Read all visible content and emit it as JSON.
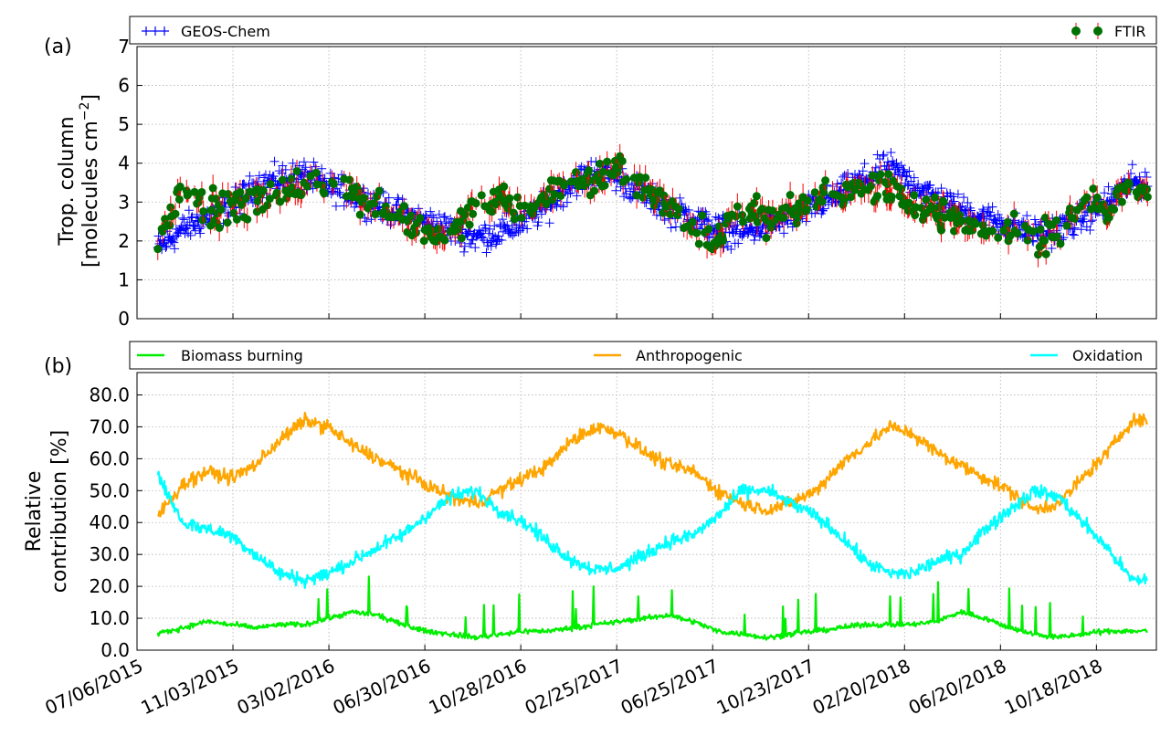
{
  "chart_data": [
    {
      "type": "scatter",
      "panel_label": "(a)",
      "ylabel_line1": "Trop. column",
      "ylabel_line2": "[molecules cm",
      "ylabel_exponent": "−2",
      "ylabel_close": "]",
      "ylim": [
        0,
        7
      ],
      "yticks": [
        0,
        1,
        2,
        3,
        4,
        5,
        6,
        7
      ],
      "x_start": "2015-07-06",
      "x_end": "2019-01-01",
      "grid": true,
      "legend_placement": "top, outside",
      "series": [
        {
          "name": "GEOS-Chem",
          "marker": "+",
          "color": "#0000ff",
          "points": [
            [
              "2015-08-01",
              1.8
            ],
            [
              "2015-09-01",
              2.3
            ],
            [
              "2015-10-01",
              2.6
            ],
            [
              "2015-11-01",
              2.9
            ],
            [
              "2015-12-01",
              3.4
            ],
            [
              "2016-01-01",
              3.6
            ],
            [
              "2016-02-01",
              3.7
            ],
            [
              "2016-03-01",
              3.4
            ],
            [
              "2016-04-01",
              3.2
            ],
            [
              "2016-05-01",
              2.9
            ],
            [
              "2016-06-01",
              2.7
            ],
            [
              "2016-07-01",
              2.5
            ],
            [
              "2016-08-01",
              2.3
            ],
            [
              "2016-09-01",
              2.1
            ],
            [
              "2016-10-01",
              2.2
            ],
            [
              "2016-11-01",
              2.5
            ],
            [
              "2016-12-01",
              2.9
            ],
            [
              "2017-01-01",
              3.5
            ],
            [
              "2017-02-01",
              3.8
            ],
            [
              "2017-03-01",
              3.6
            ],
            [
              "2017-04-01",
              3.2
            ],
            [
              "2017-05-01",
              2.8
            ],
            [
              "2017-06-01",
              2.6
            ],
            [
              "2017-07-01",
              2.3
            ],
            [
              "2017-08-01",
              2.2
            ],
            [
              "2017-09-01",
              2.4
            ],
            [
              "2017-10-01",
              2.6
            ],
            [
              "2017-11-01",
              2.9
            ],
            [
              "2017-12-01",
              3.2
            ],
            [
              "2018-01-01",
              3.6
            ],
            [
              "2018-02-01",
              3.9
            ],
            [
              "2018-03-01",
              3.5
            ],
            [
              "2018-04-01",
              3.1
            ],
            [
              "2018-05-01",
              2.8
            ],
            [
              "2018-06-01",
              2.6
            ],
            [
              "2018-07-01",
              2.4
            ],
            [
              "2018-08-01",
              2.2
            ],
            [
              "2018-09-01",
              2.3
            ],
            [
              "2018-10-01",
              2.6
            ],
            [
              "2018-11-01",
              3.0
            ],
            [
              "2018-12-01",
              3.5
            ]
          ]
        },
        {
          "name": "FTIR",
          "marker": "o",
          "color": "#007000",
          "errorbar_color": "#ff0000",
          "points": [
            [
              "2015-08-01",
              1.9
            ],
            [
              "2015-09-01",
              3.4
            ],
            [
              "2015-10-01",
              2.9
            ],
            [
              "2015-11-01",
              2.8
            ],
            [
              "2015-12-01",
              3.1
            ],
            [
              "2016-01-01",
              3.3
            ],
            [
              "2016-02-01",
              3.4
            ],
            [
              "2016-03-01",
              3.5
            ],
            [
              "2016-04-01",
              3.3
            ],
            [
              "2016-05-01",
              2.9
            ],
            [
              "2016-06-01",
              2.5
            ],
            [
              "2016-07-01",
              2.2
            ],
            [
              "2016-08-01",
              2.1
            ],
            [
              "2016-09-01",
              2.9
            ],
            [
              "2016-10-01",
              3.1
            ],
            [
              "2016-11-01",
              2.6
            ],
            [
              "2016-12-01",
              3.3
            ],
            [
              "2017-01-01",
              3.5
            ],
            [
              "2017-02-01",
              3.6
            ],
            [
              "2017-03-01",
              3.7
            ],
            [
              "2017-04-01",
              3.4
            ],
            [
              "2017-05-01",
              2.9
            ],
            [
              "2017-06-01",
              2.4
            ],
            [
              "2017-07-01",
              2.0
            ],
            [
              "2017-08-01",
              2.9
            ],
            [
              "2017-09-01",
              2.5
            ],
            [
              "2017-10-01",
              2.7
            ],
            [
              "2017-11-01",
              3.0
            ],
            [
              "2017-12-01",
              3.2
            ],
            [
              "2018-01-01",
              3.5
            ],
            [
              "2018-02-01",
              3.3
            ],
            [
              "2018-03-01",
              3.0
            ],
            [
              "2018-04-01",
              2.8
            ],
            [
              "2018-05-01",
              2.5
            ],
            [
              "2018-06-01",
              2.3
            ],
            [
              "2018-07-01",
              2.4
            ],
            [
              "2018-08-01",
              2.0
            ],
            [
              "2018-09-01",
              2.2
            ],
            [
              "2018-10-01",
              3.2
            ],
            [
              "2018-11-01",
              2.8
            ],
            [
              "2018-12-01",
              3.4
            ]
          ]
        }
      ]
    },
    {
      "type": "line",
      "panel_label": "(b)",
      "ylabel_line1": "Relative",
      "ylabel_line2": "contribution [%]",
      "ylim": [
        0,
        87
      ],
      "yticks": [
        0,
        10,
        20,
        30,
        40,
        50,
        60,
        70,
        80
      ],
      "ytick_labels": [
        "0.0",
        "10.0",
        "20.0",
        "30.0",
        "40.0",
        "50.0",
        "60.0",
        "70.0",
        "80.0"
      ],
      "x_start": "2015-07-06",
      "x_end": "2019-01-01",
      "grid": true,
      "legend_placement": "top, outside",
      "xtick_labels": [
        "07/06/2015",
        "11/03/2015",
        "03/02/2016",
        "06/30/2016",
        "10/28/2016",
        "02/25/2017",
        "06/25/2017",
        "10/23/2017",
        "02/20/2018",
        "06/20/2018",
        "10/18/2018"
      ],
      "xtick_dates": [
        "2015-07-06",
        "2015-11-03",
        "2016-03-02",
        "2016-06-30",
        "2016-10-28",
        "2017-02-25",
        "2017-06-25",
        "2017-10-23",
        "2018-02-20",
        "2018-06-20",
        "2018-10-18"
      ],
      "series": [
        {
          "name": "Biomass burning",
          "color": "#00ee00",
          "points": [
            [
              "2015-08-01",
              5
            ],
            [
              "2015-09-01",
              7
            ],
            [
              "2015-10-01",
              9
            ],
            [
              "2015-11-01",
              8
            ],
            [
              "2015-12-01",
              7
            ],
            [
              "2016-01-01",
              8
            ],
            [
              "2016-02-01",
              8
            ],
            [
              "2016-03-01",
              10
            ],
            [
              "2016-04-01",
              12
            ],
            [
              "2016-05-01",
              11
            ],
            [
              "2016-06-01",
              8
            ],
            [
              "2016-07-01",
              6
            ],
            [
              "2016-08-01",
              5
            ],
            [
              "2016-09-01",
              4
            ],
            [
              "2016-10-01",
              5
            ],
            [
              "2016-11-01",
              6
            ],
            [
              "2016-12-01",
              6
            ],
            [
              "2017-01-01",
              7
            ],
            [
              "2017-02-01",
              8
            ],
            [
              "2017-03-01",
              9
            ],
            [
              "2017-04-01",
              10
            ],
            [
              "2017-05-01",
              11
            ],
            [
              "2017-06-01",
              9
            ],
            [
              "2017-07-01",
              6
            ],
            [
              "2017-08-01",
              5
            ],
            [
              "2017-09-01",
              4
            ],
            [
              "2017-10-01",
              5
            ],
            [
              "2017-11-01",
              6
            ],
            [
              "2017-12-01",
              7
            ],
            [
              "2018-01-01",
              8
            ],
            [
              "2018-02-01",
              8
            ],
            [
              "2018-03-01",
              8
            ],
            [
              "2018-04-01",
              9
            ],
            [
              "2018-05-01",
              12
            ],
            [
              "2018-06-01",
              10
            ],
            [
              "2018-07-01",
              7
            ],
            [
              "2018-08-01",
              5
            ],
            [
              "2018-09-01",
              4
            ],
            [
              "2018-10-01",
              5
            ],
            [
              "2018-11-01",
              6
            ],
            [
              "2018-12-01",
              6
            ]
          ]
        },
        {
          "name": "Anthropogenic",
          "color": "#ffa500",
          "points": [
            [
              "2015-08-01",
              42
            ],
            [
              "2015-09-01",
              52
            ],
            [
              "2015-10-01",
              56
            ],
            [
              "2015-11-01",
              54
            ],
            [
              "2015-12-01",
              58
            ],
            [
              "2016-01-01",
              66
            ],
            [
              "2016-02-01",
              72
            ],
            [
              "2016-03-01",
              70
            ],
            [
              "2016-04-01",
              64
            ],
            [
              "2016-05-01",
              60
            ],
            [
              "2016-06-01",
              56
            ],
            [
              "2016-07-01",
              52
            ],
            [
              "2016-08-01",
              48
            ],
            [
              "2016-09-01",
              46
            ],
            [
              "2016-10-01",
              50
            ],
            [
              "2016-11-01",
              54
            ],
            [
              "2016-12-01",
              58
            ],
            [
              "2017-01-01",
              66
            ],
            [
              "2017-02-01",
              70
            ],
            [
              "2017-03-01",
              68
            ],
            [
              "2017-04-01",
              62
            ],
            [
              "2017-05-01",
              58
            ],
            [
              "2017-06-01",
              56
            ],
            [
              "2017-07-01",
              50
            ],
            [
              "2017-08-01",
              46
            ],
            [
              "2017-09-01",
              44
            ],
            [
              "2017-10-01",
              46
            ],
            [
              "2017-11-01",
              50
            ],
            [
              "2017-12-01",
              58
            ],
            [
              "2018-01-01",
              64
            ],
            [
              "2018-02-01",
              70
            ],
            [
              "2018-03-01",
              68
            ],
            [
              "2018-04-01",
              62
            ],
            [
              "2018-05-01",
              58
            ],
            [
              "2018-06-01",
              54
            ],
            [
              "2018-07-01",
              50
            ],
            [
              "2018-08-01",
              44
            ],
            [
              "2018-09-01",
              46
            ],
            [
              "2018-10-01",
              54
            ],
            [
              "2018-11-01",
              62
            ],
            [
              "2018-12-01",
              72
            ]
          ]
        },
        {
          "name": "Oxidation",
          "color": "#00ffff",
          "points": [
            [
              "2015-08-01",
              55
            ],
            [
              "2015-09-01",
              40
            ],
            [
              "2015-10-01",
              38
            ],
            [
              "2015-11-01",
              36
            ],
            [
              "2015-12-01",
              30
            ],
            [
              "2016-01-01",
              24
            ],
            [
              "2016-02-01",
              22
            ],
            [
              "2016-03-01",
              24
            ],
            [
              "2016-04-01",
              28
            ],
            [
              "2016-05-01",
              32
            ],
            [
              "2016-06-01",
              36
            ],
            [
              "2016-07-01",
              42
            ],
            [
              "2016-08-01",
              48
            ],
            [
              "2016-09-01",
              50
            ],
            [
              "2016-10-01",
              44
            ],
            [
              "2016-11-01",
              40
            ],
            [
              "2016-12-01",
              34
            ],
            [
              "2017-01-01",
              28
            ],
            [
              "2017-02-01",
              25
            ],
            [
              "2017-03-01",
              26
            ],
            [
              "2017-04-01",
              30
            ],
            [
              "2017-05-01",
              34
            ],
            [
              "2017-06-01",
              36
            ],
            [
              "2017-07-01",
              42
            ],
            [
              "2017-08-01",
              50
            ],
            [
              "2017-09-01",
              50
            ],
            [
              "2017-10-01",
              46
            ],
            [
              "2017-11-01",
              42
            ],
            [
              "2017-12-01",
              36
            ],
            [
              "2018-01-01",
              28
            ],
            [
              "2018-02-01",
              24
            ],
            [
              "2018-03-01",
              24
            ],
            [
              "2018-04-01",
              28
            ],
            [
              "2018-05-01",
              30
            ],
            [
              "2018-06-01",
              38
            ],
            [
              "2018-07-01",
              44
            ],
            [
              "2018-08-01",
              50
            ],
            [
              "2018-09-01",
              48
            ],
            [
              "2018-10-01",
              40
            ],
            [
              "2018-11-01",
              32
            ],
            [
              "2018-12-01",
              22
            ]
          ]
        }
      ]
    }
  ]
}
